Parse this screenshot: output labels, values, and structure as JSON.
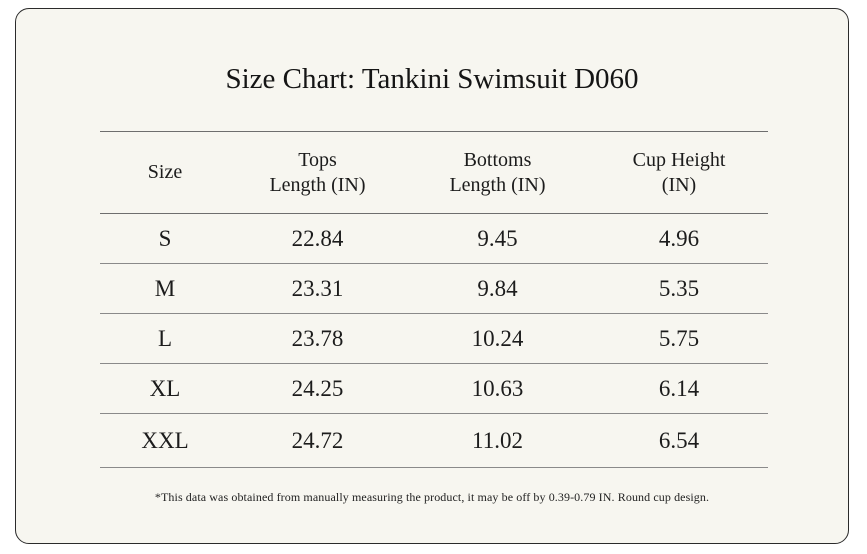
{
  "title": "Size Chart: Tankini Swimsuit D060",
  "table": {
    "headers": [
      {
        "line1": "Size",
        "line2": ""
      },
      {
        "line1": "Tops",
        "line2": "Length (IN)"
      },
      {
        "line1": "Bottoms",
        "line2": "Length (IN)"
      },
      {
        "line1": "Cup Height",
        "line2": "(IN)"
      }
    ],
    "rows": [
      [
        "S",
        "22.84",
        "9.45",
        "4.96"
      ],
      [
        "M",
        "23.31",
        "9.84",
        "5.35"
      ],
      [
        "L",
        "23.78",
        "10.24",
        "5.75"
      ],
      [
        "XL",
        "24.25",
        "10.63",
        "6.14"
      ],
      [
        "XXL",
        "24.72",
        "11.02",
        "6.54"
      ]
    ]
  },
  "footnote": "*This data was obtained from manually measuring the product, it may be off by 0.39-0.79 IN. Round cup design.",
  "colors": {
    "background": "#f7f6f0",
    "border": "#2b2b2b",
    "text": "#1c1c1c"
  }
}
